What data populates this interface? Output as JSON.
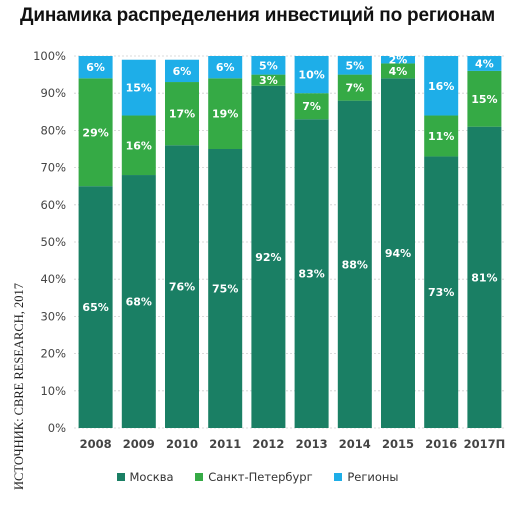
{
  "title": "Динамика распределения инвестиций по регионам",
  "source": "ИСТОЧНИК: CBRE RESEARCH, 2017",
  "colors": {
    "moscow": "#1a7f64",
    "spb": "#35aa45",
    "regions": "#1eaee8",
    "grid": "#cfcfcf",
    "axis_text": "#444444"
  },
  "chart_data": {
    "type": "bar",
    "stacked": true,
    "categories": [
      "2008",
      "2009",
      "2010",
      "2011",
      "2012",
      "2013",
      "2014",
      "2015",
      "2016",
      "2017П"
    ],
    "series": [
      {
        "name": "Москва",
        "values": [
          65,
          68,
          76,
          75,
          92,
          83,
          88,
          94,
          73,
          81
        ]
      },
      {
        "name": "Санкт-Петербург",
        "values": [
          29,
          16,
          17,
          19,
          3,
          7,
          7,
          4,
          11,
          15
        ]
      },
      {
        "name": "Регионы",
        "values": [
          6,
          15,
          6,
          6,
          5,
          10,
          5,
          2,
          16,
          4
        ]
      }
    ],
    "ylim": [
      0,
      100
    ],
    "yticks": [
      "0%",
      "10%",
      "20%",
      "30%",
      "40%",
      "50%",
      "60%",
      "70%",
      "80%",
      "90%",
      "100%"
    ],
    "grid": true,
    "legend_position": "bottom"
  }
}
